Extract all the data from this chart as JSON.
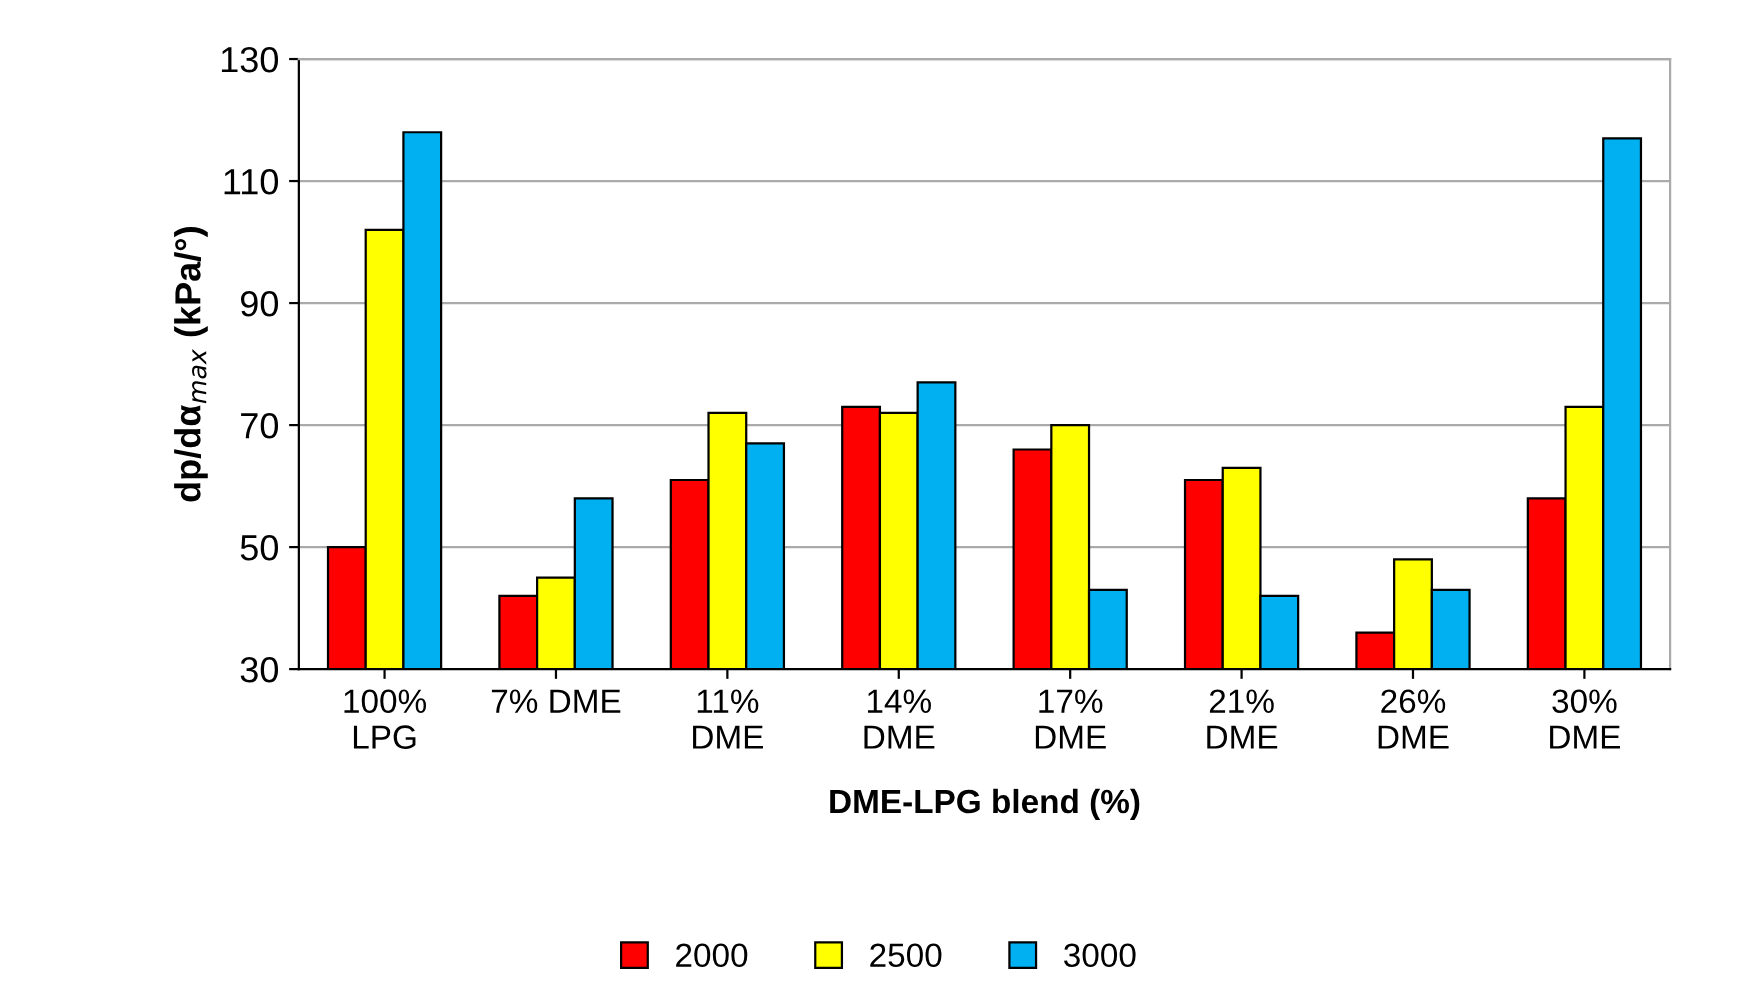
{
  "chart_data": {
    "type": "bar",
    "xlabel": "DME-LPG blend (%)",
    "ylabel": "dp/dα$_{max}$ (kPa/°)",
    "categories": [
      "100%\nLPG",
      "7% DME",
      "11%\nDME",
      "14%\nDME",
      "17%\nDME",
      "21%\nDME",
      "26%\nDME",
      "30%\nDME"
    ],
    "series": [
      {
        "name": "2000",
        "color": "#ff0000",
        "values": [
          50,
          42,
          61,
          73,
          66,
          61,
          36,
          58
        ]
      },
      {
        "name": "2500",
        "color": "#ffff00",
        "values": [
          102,
          45,
          72,
          72,
          70,
          63,
          48,
          73
        ]
      },
      {
        "name": "3000",
        "color": "#00b0f0",
        "values": [
          118,
          58,
          67,
          77,
          43,
          42,
          43,
          117
        ]
      }
    ],
    "ylim": [
      30,
      130
    ],
    "yticks": [
      30,
      50,
      70,
      90,
      110,
      130
    ],
    "grid": "y",
    "legend": "bottom"
  }
}
